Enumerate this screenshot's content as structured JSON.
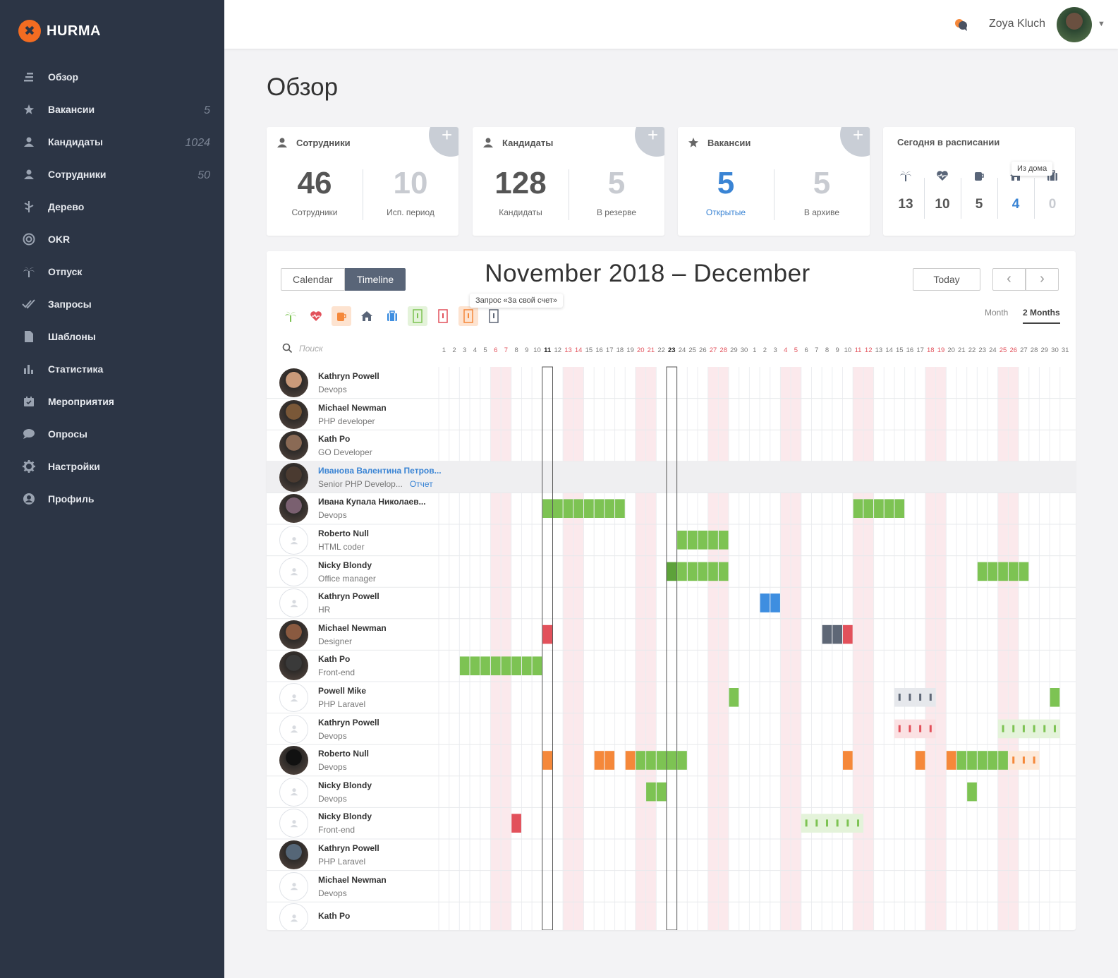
{
  "app": {
    "brand": "HURMA"
  },
  "sidebar": {
    "items": [
      {
        "label": "Обзор",
        "icon": "overview-icon",
        "count": ""
      },
      {
        "label": "Вакансии",
        "icon": "star-icon",
        "count": "5"
      },
      {
        "label": "Кандидаты",
        "icon": "user-icon",
        "count": "1024"
      },
      {
        "label": "Сотрудники",
        "icon": "user-icon",
        "count": "50"
      },
      {
        "label": "Дерево",
        "icon": "tree-icon",
        "count": ""
      },
      {
        "label": "OKR",
        "icon": "target-icon",
        "count": ""
      },
      {
        "label": "Отпуск",
        "icon": "palm-icon",
        "count": ""
      },
      {
        "label": "Запросы",
        "icon": "double-check-icon",
        "count": ""
      },
      {
        "label": "Шаблоны",
        "icon": "document-icon",
        "count": ""
      },
      {
        "label": "Статистика",
        "icon": "bar-chart-icon",
        "count": ""
      },
      {
        "label": "Мероприятия",
        "icon": "calendar-icon",
        "count": ""
      },
      {
        "label": "Опросы",
        "icon": "chat-icon",
        "count": ""
      },
      {
        "label": "Настройки",
        "icon": "gear-icon",
        "count": ""
      },
      {
        "label": "Профиль",
        "icon": "profile-icon",
        "count": ""
      }
    ]
  },
  "topbar": {
    "user_name": "Zoya Kluch"
  },
  "page": {
    "title": "Обзор"
  },
  "cards": {
    "employees": {
      "title": "Сотрудники",
      "left_value": "46",
      "left_label": "Сотрудники",
      "right_value": "10",
      "right_label": "Исп. период"
    },
    "candidates": {
      "title": "Кандидаты",
      "left_value": "128",
      "left_label": "Кандидаты",
      "right_value": "5",
      "right_label": "В резерве"
    },
    "vacancies": {
      "title": "Вакансии",
      "left_value": "5",
      "left_label": "Открытые",
      "right_value": "5",
      "right_label": "В архиве"
    },
    "schedule": {
      "title": "Сегодня в расписании",
      "tooltip": "Из дома",
      "items": [
        {
          "icon": "palm-icon",
          "value": "13"
        },
        {
          "icon": "heart-icon",
          "value": "10"
        },
        {
          "icon": "cup-icon",
          "value": "5"
        },
        {
          "icon": "home-icon",
          "value": "4"
        },
        {
          "icon": "briefcase-icon",
          "value": "0"
        }
      ]
    }
  },
  "timeline": {
    "view_calendar": "Calendar",
    "view_timeline": "Timeline",
    "title": "November 2018 – December",
    "today": "Today",
    "range_month": "Month",
    "range_2months": "2 Months",
    "filter_tooltip": "Запрос «За свой счет»",
    "search_placeholder": "Поиск",
    "colors": {
      "green": "#7dc353",
      "orange": "#f5883a",
      "red": "#e2515b",
      "blue": "#3e8ee0",
      "gray": "#5e6776",
      "weekend": "#fbe9ec",
      "accent": "#3a84d4",
      "sidebar": "#2c3545"
    },
    "days": [
      {
        "d": "1",
        "we": false
      },
      {
        "d": "2",
        "we": false
      },
      {
        "d": "3",
        "we": false
      },
      {
        "d": "4",
        "we": false
      },
      {
        "d": "5",
        "we": false
      },
      {
        "d": "6",
        "we": true
      },
      {
        "d": "7",
        "we": true
      },
      {
        "d": "8",
        "we": false
      },
      {
        "d": "9",
        "we": false
      },
      {
        "d": "10",
        "we": false
      },
      {
        "d": "11",
        "we": false,
        "bold": true
      },
      {
        "d": "12",
        "we": false
      },
      {
        "d": "13",
        "we": true
      },
      {
        "d": "14",
        "we": true
      },
      {
        "d": "15",
        "we": false
      },
      {
        "d": "16",
        "we": false
      },
      {
        "d": "17",
        "we": false
      },
      {
        "d": "18",
        "we": false
      },
      {
        "d": "19",
        "we": false
      },
      {
        "d": "20",
        "we": true
      },
      {
        "d": "21",
        "we": true
      },
      {
        "d": "22",
        "we": false
      },
      {
        "d": "23",
        "we": false,
        "bold": true
      },
      {
        "d": "24",
        "we": false
      },
      {
        "d": "25",
        "we": false
      },
      {
        "d": "26",
        "we": false
      },
      {
        "d": "27",
        "we": true
      },
      {
        "d": "28",
        "we": true
      },
      {
        "d": "29",
        "we": false
      },
      {
        "d": "30",
        "we": false
      },
      {
        "d": "1",
        "we": false
      },
      {
        "d": "2",
        "we": false
      },
      {
        "d": "3",
        "we": false
      },
      {
        "d": "4",
        "we": true
      },
      {
        "d": "5",
        "we": true
      },
      {
        "d": "6",
        "we": false
      },
      {
        "d": "7",
        "we": false
      },
      {
        "d": "8",
        "we": false
      },
      {
        "d": "9",
        "we": false
      },
      {
        "d": "10",
        "we": false
      },
      {
        "d": "11",
        "we": true
      },
      {
        "d": "12",
        "we": true
      },
      {
        "d": "13",
        "we": false
      },
      {
        "d": "14",
        "we": false
      },
      {
        "d": "15",
        "we": false
      },
      {
        "d": "16",
        "we": false
      },
      {
        "d": "17",
        "we": false
      },
      {
        "d": "18",
        "we": true
      },
      {
        "d": "19",
        "we": true
      },
      {
        "d": "20",
        "we": false
      },
      {
        "d": "21",
        "we": false
      },
      {
        "d": "22",
        "we": false
      },
      {
        "d": "23",
        "we": false
      },
      {
        "d": "24",
        "we": false
      },
      {
        "d": "25",
        "we": true
      },
      {
        "d": "26",
        "we": true
      },
      {
        "d": "27",
        "we": false
      },
      {
        "d": "28",
        "we": false
      },
      {
        "d": "29",
        "we": false
      },
      {
        "d": "30",
        "we": false
      },
      {
        "d": "31",
        "we": false
      }
    ],
    "people": [
      {
        "name": "Kathryn Powell",
        "role": "Devops",
        "photo": true,
        "bars": []
      },
      {
        "name": "Michael Newman",
        "role": "PHP developer",
        "photo": true,
        "bars": []
      },
      {
        "name": "Kath Po",
        "role": "GO Developer",
        "photo": true,
        "bars": []
      },
      {
        "name": "Иванова Валентина Петров...",
        "role": "Senior PHP Develop...",
        "report": "Отчет",
        "photo": true,
        "highlight": true,
        "bars": []
      },
      {
        "name": "Ивана Купала Николаев...",
        "role": "Devops",
        "photo": true,
        "bars": [
          {
            "s": 10,
            "e": 17,
            "c": "green"
          },
          {
            "s": 40,
            "e": 44,
            "c": "green"
          }
        ]
      },
      {
        "name": "Roberto Null",
        "role": "HTML coder",
        "photo": false,
        "bars": [
          {
            "s": 23,
            "e": 27,
            "c": "green"
          }
        ]
      },
      {
        "name": "Nicky Blondy",
        "role": "Office manager",
        "photo": false,
        "bars": [
          {
            "s": 22,
            "e": 22,
            "c": "green_dark"
          },
          {
            "s": 23,
            "e": 27,
            "c": "green"
          },
          {
            "s": 52,
            "e": 56,
            "c": "green"
          }
        ]
      },
      {
        "name": "Kathryn Powell",
        "role": "HR",
        "photo": false,
        "bars": [
          {
            "s": 31,
            "e": 32,
            "c": "blue"
          }
        ]
      },
      {
        "name": "Michael Newman",
        "role": "Designer",
        "photo": true,
        "bars": [
          {
            "s": 10,
            "e": 10,
            "c": "red"
          },
          {
            "s": 37,
            "e": 38,
            "c": "gray"
          },
          {
            "s": 39,
            "e": 39,
            "c": "red"
          }
        ]
      },
      {
        "name": "Kath Po",
        "role": "Front-end",
        "photo": true,
        "bars": [
          {
            "s": 2,
            "e": 9,
            "c": "green"
          }
        ]
      },
      {
        "name": "Powell Mike",
        "role": "PHP Laravel",
        "photo": false,
        "bars": [
          {
            "s": 28,
            "e": 28,
            "c": "green"
          },
          {
            "s": 44,
            "e": 47,
            "c": "gray_req"
          },
          {
            "s": 59,
            "e": 59,
            "c": "green"
          }
        ]
      },
      {
        "name": "Kathryn Powell",
        "role": "Devops",
        "photo": false,
        "bars": [
          {
            "s": 44,
            "e": 47,
            "c": "red_req"
          },
          {
            "s": 54,
            "e": 59,
            "c": "green_req"
          }
        ]
      },
      {
        "name": "Roberto Null",
        "role": "Devops",
        "photo": true,
        "bars": [
          {
            "s": 10,
            "e": 10,
            "c": "orange"
          },
          {
            "s": 15,
            "e": 16,
            "c": "orange"
          },
          {
            "s": 18,
            "e": 18,
            "c": "orange"
          },
          {
            "s": 19,
            "e": 23,
            "c": "green"
          },
          {
            "s": 39,
            "e": 39,
            "c": "orange"
          },
          {
            "s": 46,
            "e": 46,
            "c": "orange"
          },
          {
            "s": 49,
            "e": 49,
            "c": "orange"
          },
          {
            "s": 50,
            "e": 54,
            "c": "green"
          },
          {
            "s": 55,
            "e": 57,
            "c": "orange_req"
          }
        ]
      },
      {
        "name": "Nicky Blondy",
        "role": "Devops",
        "photo": false,
        "bars": [
          {
            "s": 20,
            "e": 21,
            "c": "green"
          },
          {
            "s": 51,
            "e": 51,
            "c": "green"
          }
        ]
      },
      {
        "name": "Nicky Blondy",
        "role": "Front-end",
        "photo": false,
        "bars": [
          {
            "s": 7,
            "e": 7,
            "c": "red"
          },
          {
            "s": 35,
            "e": 40,
            "c": "green_req"
          }
        ]
      },
      {
        "name": "Kathryn Powell",
        "role": "PHP Laravel",
        "photo": true,
        "bars": []
      },
      {
        "name": "Michael Newman",
        "role": "Devops",
        "photo": false,
        "bars": []
      },
      {
        "name": "Kath Po",
        "role": "",
        "photo": false,
        "bars": []
      }
    ]
  }
}
